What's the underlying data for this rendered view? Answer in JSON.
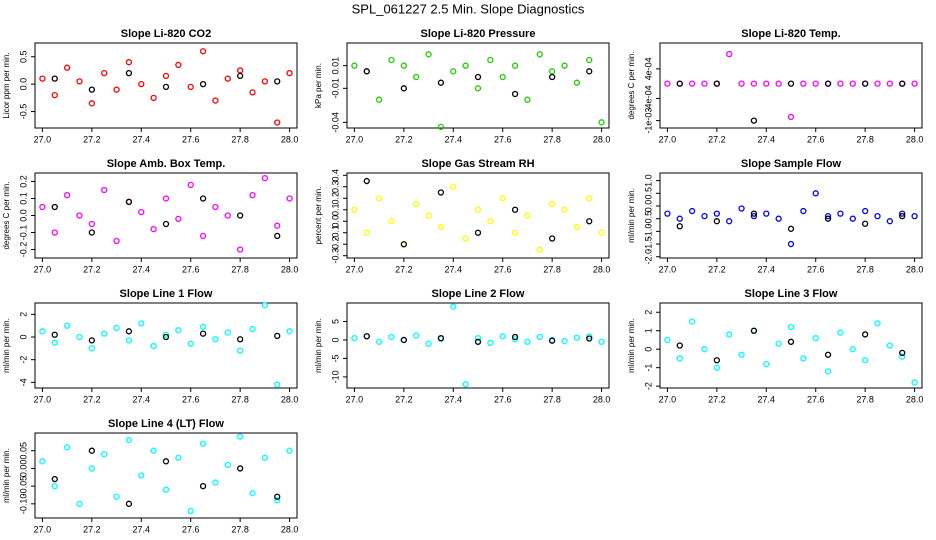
{
  "title": "SPL_061227  2.5 Min. Slope Diagnostics",
  "chart_data": [
    {
      "type": "scatter",
      "title": "Slope Li-820 CO2",
      "y_label": "Licor ppm per min.",
      "x": [
        27.0,
        27.05,
        27.1,
        27.15,
        27.2,
        27.25,
        27.3,
        27.35,
        27.4,
        27.45,
        27.5,
        27.55,
        27.6,
        27.65,
        27.7,
        27.75,
        27.8,
        27.85,
        27.9,
        27.95,
        28.0
      ],
      "series": [
        {
          "color": "red",
          "values": [
            0.1,
            -0.2,
            0.3,
            0.05,
            -0.35,
            0.2,
            -0.1,
            0.4,
            0.0,
            -0.25,
            0.15,
            0.35,
            -0.05,
            0.6,
            -0.3,
            0.1,
            0.25,
            -0.15,
            0.05,
            -0.7,
            0.2
          ]
        },
        {
          "color": "black",
          "values": [
            null,
            0.1,
            null,
            null,
            -0.1,
            null,
            null,
            0.2,
            null,
            null,
            -0.05,
            null,
            null,
            0.0,
            null,
            null,
            0.15,
            null,
            null,
            0.05,
            null
          ]
        }
      ],
      "xlim": [
        26.97,
        28.03
      ],
      "xticks": [
        {
          "value": 27,
          "label": "27.0"
        },
        27.2,
        27.4,
        27.6,
        27.8,
        {
          "value": 28,
          "label": "28.0"
        }
      ],
      "ylim": [
        -0.8,
        0.75
      ],
      "yticks": [
        -0.5,
        {
          "value": 0,
          "label": "0.0"
        },
        0.5
      ]
    },
    {
      "type": "scatter",
      "title": "Slope Li-820 Pressure",
      "y_label": "kPa per min.",
      "x": [
        27.0,
        27.05,
        27.1,
        27.15,
        27.2,
        27.25,
        27.3,
        27.35,
        27.4,
        27.45,
        27.5,
        27.55,
        27.6,
        27.65,
        27.7,
        27.75,
        27.8,
        27.85,
        27.9,
        27.95,
        28.0
      ],
      "series": [
        {
          "color": "#22cc00",
          "values": [
            0.01,
            0.005,
            -0.02,
            0.015,
            0.01,
            0.0,
            0.02,
            -0.044,
            0.005,
            0.01,
            -0.01,
            0.015,
            0.0,
            0.01,
            -0.02,
            0.02,
            0.005,
            0.01,
            -0.005,
            0.015,
            -0.04
          ]
        },
        {
          "color": "black",
          "values": [
            null,
            0.005,
            null,
            null,
            -0.01,
            null,
            null,
            -0.005,
            null,
            null,
            0.0,
            null,
            null,
            -0.015,
            null,
            null,
            0.0,
            null,
            null,
            0.005,
            null
          ]
        }
      ],
      "xlim": [
        26.97,
        28.03
      ],
      "xticks": [
        {
          "value": 27,
          "label": "27.0"
        },
        27.2,
        27.4,
        27.6,
        27.8,
        {
          "value": 28,
          "label": "28.0"
        }
      ],
      "ylim": [
        -0.045,
        0.03
      ],
      "yticks": [
        -0.04,
        -0.01,
        0.01
      ]
    },
    {
      "type": "scatter",
      "title": "Slope Li-820 Temp.",
      "y_label": "degrees C per min.",
      "x": [
        27.0,
        27.05,
        27.1,
        27.15,
        27.2,
        27.25,
        27.3,
        27.35,
        27.4,
        27.45,
        27.5,
        27.55,
        27.6,
        27.65,
        27.7,
        27.75,
        27.8,
        27.85,
        27.9,
        27.95,
        28.0
      ],
      "series": [
        {
          "color": "magenta",
          "values": [
            0,
            0,
            0,
            0,
            0,
            0.0008,
            0,
            0,
            0,
            0,
            -0.0009,
            0,
            0,
            0,
            0,
            0,
            0,
            0,
            0,
            0,
            0
          ]
        },
        {
          "color": "black",
          "values": [
            null,
            0,
            null,
            null,
            0,
            null,
            null,
            -0.001,
            null,
            null,
            0,
            null,
            null,
            0,
            null,
            null,
            0,
            null,
            null,
            0,
            null
          ]
        }
      ],
      "xlim": [
        26.97,
        28.03
      ],
      "xticks": [
        {
          "value": 27,
          "label": "27.0"
        },
        27.2,
        27.4,
        27.6,
        27.8,
        {
          "value": 28,
          "label": "28.0"
        }
      ],
      "ylim": [
        -0.0012,
        0.0011
      ],
      "yticks": [
        {
          "value": -0.001,
          "label": "-1e-03"
        },
        {
          "value": -0.0004,
          "label": "-4e-04"
        },
        {
          "value": 0.0004,
          "label": "4e-04"
        }
      ]
    },
    {
      "type": "scatter",
      "title": "Slope Amb. Box Temp.",
      "y_label": "degrees C per min.",
      "x": [
        27.0,
        27.05,
        27.1,
        27.15,
        27.2,
        27.25,
        27.3,
        27.35,
        27.4,
        27.45,
        27.5,
        27.55,
        27.6,
        27.65,
        27.7,
        27.75,
        27.8,
        27.85,
        27.9,
        27.95,
        28.0
      ],
      "series": [
        {
          "color": "magenta",
          "values": [
            0.05,
            -0.1,
            0.12,
            0.0,
            -0.05,
            0.15,
            -0.15,
            0.08,
            0.02,
            -0.08,
            0.1,
            -0.02,
            0.18,
            -0.12,
            0.05,
            0.0,
            -0.2,
            0.12,
            0.22,
            -0.06,
            0.1
          ]
        },
        {
          "color": "black",
          "values": [
            null,
            0.05,
            null,
            null,
            -0.1,
            null,
            null,
            0.08,
            null,
            null,
            -0.05,
            null,
            null,
            0.1,
            null,
            null,
            0.0,
            null,
            null,
            -0.12,
            null
          ]
        }
      ],
      "xlim": [
        26.97,
        28.03
      ],
      "xticks": [
        {
          "value": 27,
          "label": "27.0"
        },
        27.2,
        27.4,
        27.6,
        27.8,
        {
          "value": 28,
          "label": "28.0"
        }
      ],
      "ylim": [
        -0.25,
        0.25
      ],
      "yticks": [
        -0.2,
        -0.1,
        {
          "value": 0,
          "label": "0.0"
        },
        0.1,
        0.2
      ]
    },
    {
      "type": "scatter",
      "title": "Slope Gas Stream RH",
      "y_label": "percent per min.",
      "x": [
        27.0,
        27.05,
        27.1,
        27.15,
        27.2,
        27.25,
        27.3,
        27.35,
        27.4,
        27.45,
        27.5,
        27.55,
        27.6,
        27.65,
        27.7,
        27.75,
        27.8,
        27.85,
        27.9,
        27.95,
        28.0
      ],
      "series": [
        {
          "color": "yellow",
          "values": [
            0.1,
            -0.1,
            0.2,
            0.0,
            -0.2,
            0.15,
            0.05,
            -0.05,
            0.3,
            -0.15,
            0.1,
            0.0,
            0.2,
            -0.1,
            0.05,
            -0.25,
            0.15,
            0.1,
            -0.05,
            0.2,
            -0.1
          ]
        },
        {
          "color": "black",
          "values": [
            null,
            0.35,
            null,
            null,
            -0.2,
            null,
            null,
            0.25,
            null,
            null,
            -0.1,
            null,
            null,
            0.1,
            null,
            null,
            -0.15,
            null,
            null,
            0.0,
            null
          ]
        }
      ],
      "xlim": [
        26.97,
        28.03
      ],
      "xticks": [
        {
          "value": 27,
          "label": "27.0"
        },
        27.2,
        27.4,
        27.6,
        27.8,
        {
          "value": 28,
          "label": "28.0"
        }
      ],
      "ylim": [
        -0.32,
        0.42
      ],
      "yticks": [
        -0.3,
        -0.2,
        -0.1,
        {
          "value": 0,
          "label": "0.0"
        },
        0.1,
        0.2,
        0.3,
        0.4
      ]
    },
    {
      "type": "scatter",
      "title": "Slope Sample Flow",
      "y_label": "ml/min per min.",
      "x": [
        27.0,
        27.05,
        27.1,
        27.15,
        27.2,
        27.25,
        27.3,
        27.35,
        27.4,
        27.45,
        27.5,
        27.55,
        27.6,
        27.65,
        27.7,
        27.75,
        27.8,
        27.85,
        27.9,
        27.95,
        28.0
      ],
      "series": [
        {
          "color": "blue",
          "values": [
            -0.3,
            -0.5,
            -0.2,
            -0.4,
            -0.3,
            -0.6,
            -0.1,
            -0.4,
            -0.3,
            -0.5,
            -1.5,
            -0.2,
            0.5,
            -0.4,
            -0.3,
            -0.5,
            -0.2,
            -0.4,
            -0.6,
            -0.3,
            -0.4
          ]
        },
        {
          "color": "black",
          "values": [
            null,
            -0.8,
            null,
            null,
            -0.6,
            null,
            null,
            -0.3,
            null,
            null,
            -0.9,
            null,
            null,
            -0.5,
            null,
            null,
            -0.7,
            null,
            null,
            -0.4,
            null
          ]
        }
      ],
      "xlim": [
        26.97,
        28.03
      ],
      "xticks": [
        {
          "value": 27,
          "label": "27.0"
        },
        27.2,
        27.4,
        27.6,
        27.8,
        {
          "value": 28,
          "label": "28.0"
        }
      ],
      "ylim": [
        -2.05,
        1.3
      ],
      "yticks": [
        {
          "value": -2,
          "label": "-2.0"
        },
        -1.5,
        {
          "value": -1,
          "label": "-1.0"
        },
        -0.5,
        {
          "value": 0,
          "label": "0.0"
        },
        0.5,
        {
          "value": 1,
          "label": "1.0"
        }
      ]
    },
    {
      "type": "scatter",
      "title": "Slope Line 1 Flow",
      "y_label": "ml/min per min.",
      "x": [
        27.0,
        27.05,
        27.1,
        27.15,
        27.2,
        27.25,
        27.3,
        27.35,
        27.4,
        27.45,
        27.5,
        27.55,
        27.6,
        27.65,
        27.7,
        27.75,
        27.8,
        27.85,
        27.9,
        27.95,
        28.0
      ],
      "series": [
        {
          "color": "cyan",
          "values": [
            0.5,
            -0.5,
            1.0,
            0.0,
            -1.0,
            0.3,
            0.8,
            -0.3,
            1.2,
            -0.8,
            0.2,
            0.6,
            -0.6,
            0.9,
            -0.2,
            0.4,
            -1.2,
            0.7,
            2.8,
            -4.2,
            0.5
          ]
        },
        {
          "color": "black",
          "values": [
            null,
            0.2,
            null,
            null,
            -0.3,
            null,
            null,
            0.5,
            null,
            null,
            0.0,
            null,
            null,
            0.3,
            null,
            null,
            -0.2,
            null,
            null,
            0.1,
            null
          ]
        }
      ],
      "xlim": [
        26.97,
        28.03
      ],
      "xticks": [
        {
          "value": 27,
          "label": "27.0"
        },
        27.2,
        27.4,
        27.6,
        27.8,
        {
          "value": 28,
          "label": "28.0"
        }
      ],
      "ylim": [
        -4.5,
        3
      ],
      "yticks": [
        -4,
        -2,
        0,
        2
      ]
    },
    {
      "type": "scatter",
      "title": "Slope Line 2 Flow",
      "y_label": "ml/min per min.",
      "x": [
        27.0,
        27.05,
        27.1,
        27.15,
        27.2,
        27.25,
        27.3,
        27.35,
        27.4,
        27.45,
        27.5,
        27.55,
        27.6,
        27.65,
        27.7,
        27.75,
        27.8,
        27.85,
        27.9,
        27.95,
        28.0
      ],
      "series": [
        {
          "color": "cyan",
          "values": [
            0.5,
            1,
            -0.5,
            0.8,
            0,
            1.2,
            -1,
            0.3,
            9,
            -12,
            0.5,
            -0.8,
            1,
            0.2,
            -0.5,
            0.8,
            0,
            -0.3,
            0.6,
            1,
            -0.5
          ]
        },
        {
          "color": "black",
          "values": [
            null,
            1,
            null,
            null,
            0,
            null,
            null,
            0.5,
            null,
            null,
            -0.5,
            null,
            null,
            0.8,
            null,
            null,
            -0.2,
            null,
            null,
            0.4,
            null
          ]
        }
      ],
      "xlim": [
        26.97,
        28.03
      ],
      "xticks": [
        {
          "value": 27,
          "label": "27.0"
        },
        27.2,
        27.4,
        27.6,
        27.8,
        {
          "value": 28,
          "label": "28.0"
        }
      ],
      "ylim": [
        -13,
        10
      ],
      "yticks": [
        -10,
        -5,
        0,
        5
      ]
    },
    {
      "type": "scatter",
      "title": "Slope Line 3 Flow",
      "y_label": "ml/min per min.",
      "x": [
        27.0,
        27.05,
        27.1,
        27.15,
        27.2,
        27.25,
        27.3,
        27.35,
        27.4,
        27.45,
        27.5,
        27.55,
        27.6,
        27.65,
        27.7,
        27.75,
        27.8,
        27.85,
        27.9,
        27.95,
        28.0
      ],
      "series": [
        {
          "color": "cyan",
          "values": [
            0.5,
            -0.5,
            1.5,
            0.0,
            -1.0,
            0.8,
            -0.3,
            1.0,
            -0.8,
            0.3,
            1.2,
            -0.5,
            0.6,
            -1.2,
            0.9,
            0.0,
            -0.6,
            1.4,
            0.2,
            -0.4,
            -1.8
          ]
        },
        {
          "color": "black",
          "values": [
            null,
            0.2,
            null,
            null,
            -0.6,
            null,
            null,
            1.0,
            null,
            null,
            0.4,
            null,
            null,
            -0.3,
            null,
            null,
            0.8,
            null,
            null,
            -0.2,
            null
          ]
        }
      ],
      "xlim": [
        26.97,
        28.03
      ],
      "xticks": [
        {
          "value": 27,
          "label": "27.0"
        },
        27.2,
        27.4,
        27.6,
        27.8,
        {
          "value": 28,
          "label": "28.0"
        }
      ],
      "ylim": [
        -2.1,
        2.5
      ],
      "yticks": [
        -2,
        -1,
        0,
        1,
        2
      ]
    },
    {
      "type": "scatter",
      "title": "Slope Line 4 (LT) Flow",
      "y_label": "ml/min per min.",
      "x": [
        27.0,
        27.05,
        27.1,
        27.15,
        27.2,
        27.25,
        27.3,
        27.35,
        27.4,
        27.45,
        27.5,
        27.55,
        27.6,
        27.65,
        27.7,
        27.75,
        27.8,
        27.85,
        27.9,
        27.95,
        28.0
      ],
      "series": [
        {
          "color": "cyan",
          "values": [
            0.02,
            -0.05,
            0.06,
            -0.1,
            0.0,
            0.04,
            -0.08,
            0.08,
            -0.02,
            0.05,
            -0.06,
            0.03,
            -0.12,
            0.07,
            -0.04,
            0.01,
            0.09,
            -0.07,
            0.03,
            -0.09,
            0.05
          ]
        },
        {
          "color": "black",
          "values": [
            null,
            -0.03,
            null,
            null,
            0.05,
            null,
            null,
            -0.1,
            null,
            null,
            0.02,
            null,
            null,
            -0.05,
            null,
            null,
            0.0,
            null,
            null,
            -0.08,
            null
          ]
        }
      ],
      "xlim": [
        26.97,
        28.03
      ],
      "xticks": [
        {
          "value": 27,
          "label": "27.0"
        },
        27.2,
        27.4,
        27.6,
        27.8,
        {
          "value": 28,
          "label": "28.0"
        }
      ],
      "ylim": [
        -0.14,
        0.1
      ],
      "yticks": [
        {
          "value": -0.1,
          "label": "-0.10"
        },
        -0.05,
        {
          "value": 0,
          "label": "0.00"
        },
        0.05
      ]
    }
  ]
}
